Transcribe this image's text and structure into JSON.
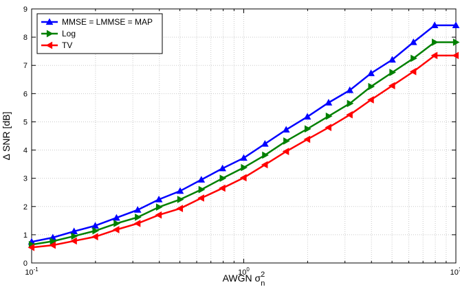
{
  "chart_data": {
    "type": "line",
    "x_scale": "log",
    "xlim": [
      0.1,
      10
    ],
    "ylim": [
      0,
      9
    ],
    "grid": true,
    "legend_position": "top-left",
    "xlabel": "AWGN σn2",
    "ylabel": "Δ SNR [dB]",
    "x": [
      0.1,
      0.1259,
      0.1585,
      0.1995,
      0.2512,
      0.3162,
      0.3981,
      0.5012,
      0.631,
      0.7943,
      1.0,
      1.2589,
      1.5849,
      1.9953,
      2.5119,
      3.1623,
      3.9811,
      5.0119,
      6.3096,
      7.9433,
      10.0
    ],
    "series": [
      {
        "name": "MMSE = LMMSE = MAP",
        "color": "#0000ff",
        "marker": "triangle-up",
        "values": [
          0.75,
          0.9,
          1.12,
          1.32,
          1.6,
          1.88,
          2.25,
          2.55,
          2.95,
          3.35,
          3.72,
          4.22,
          4.72,
          5.18,
          5.68,
          6.12,
          6.72,
          7.2,
          7.82,
          8.42,
          8.42
        ]
      },
      {
        "name": "Log",
        "color": "#008000",
        "marker": "triangle-right",
        "values": [
          0.65,
          0.77,
          0.95,
          1.14,
          1.4,
          1.62,
          1.98,
          2.25,
          2.6,
          3.0,
          3.38,
          3.82,
          4.32,
          4.75,
          5.2,
          5.65,
          6.25,
          6.75,
          7.25,
          7.82,
          7.82
        ]
      },
      {
        "name": "TV",
        "color": "#ff0000",
        "marker": "triangle-left",
        "values": [
          0.55,
          0.63,
          0.78,
          0.93,
          1.18,
          1.4,
          1.7,
          1.93,
          2.3,
          2.65,
          3.02,
          3.48,
          3.95,
          4.38,
          4.8,
          5.25,
          5.78,
          6.28,
          6.78,
          7.35,
          7.35
        ]
      }
    ],
    "y_ticks": [
      0,
      1,
      2,
      3,
      4,
      5,
      6,
      7,
      8,
      9
    ],
    "x_tick_labels": [
      {
        "value": 0.1,
        "base": "10",
        "exp": "-1"
      },
      {
        "value": 1,
        "base": "10",
        "exp": "0"
      },
      {
        "value": 10,
        "base": "10",
        "exp": "1"
      }
    ]
  }
}
